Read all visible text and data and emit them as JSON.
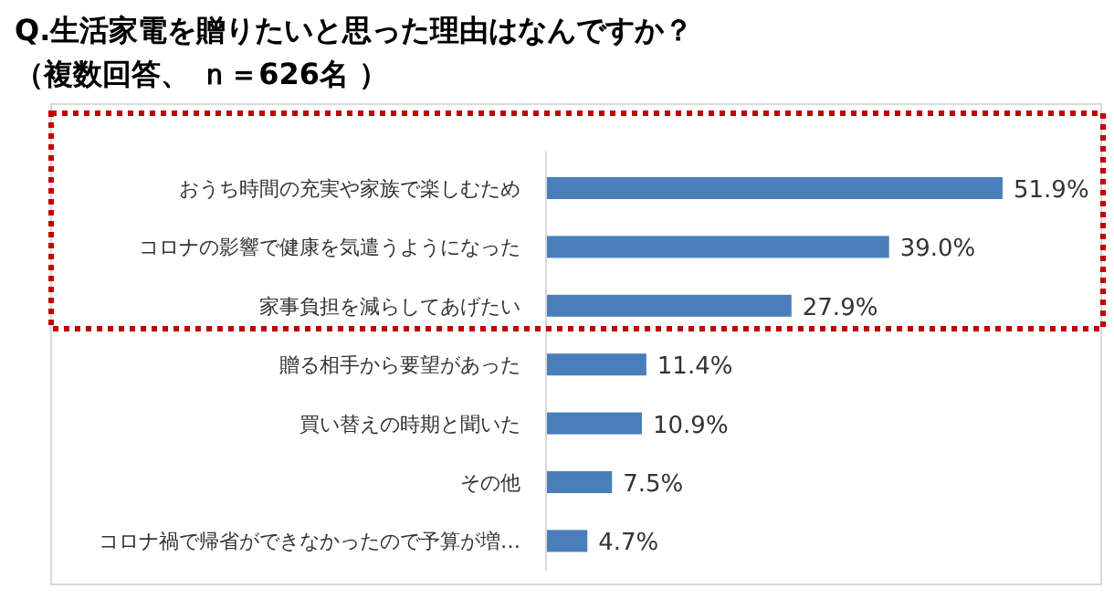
{
  "chart_data": {
    "type": "bar",
    "orientation": "horizontal",
    "title": "Q.生活家電を贈りたいと思った理由はなんですか？",
    "subtitle": "（複数回答、 ｎ＝626名 ）",
    "categories": [
      "おうち時間の充実や家族で楽しむため",
      "コロナの影響で健康を気遣うようになった",
      "家事負担を減らしてあげたい",
      "贈る相手から要望があった",
      "買い替えの時期と聞いた",
      "その他",
      "コロナ禍で帰省ができなかったので予算が増…"
    ],
    "values": [
      51.9,
      39.0,
      27.9,
      11.4,
      10.9,
      7.5,
      4.7
    ],
    "value_labels": [
      "51.9%",
      "39.0%",
      "27.9%",
      "11.4%",
      "10.9%",
      "7.5%",
      "4.7%"
    ],
    "color": "#4a7ebb"
  }
}
